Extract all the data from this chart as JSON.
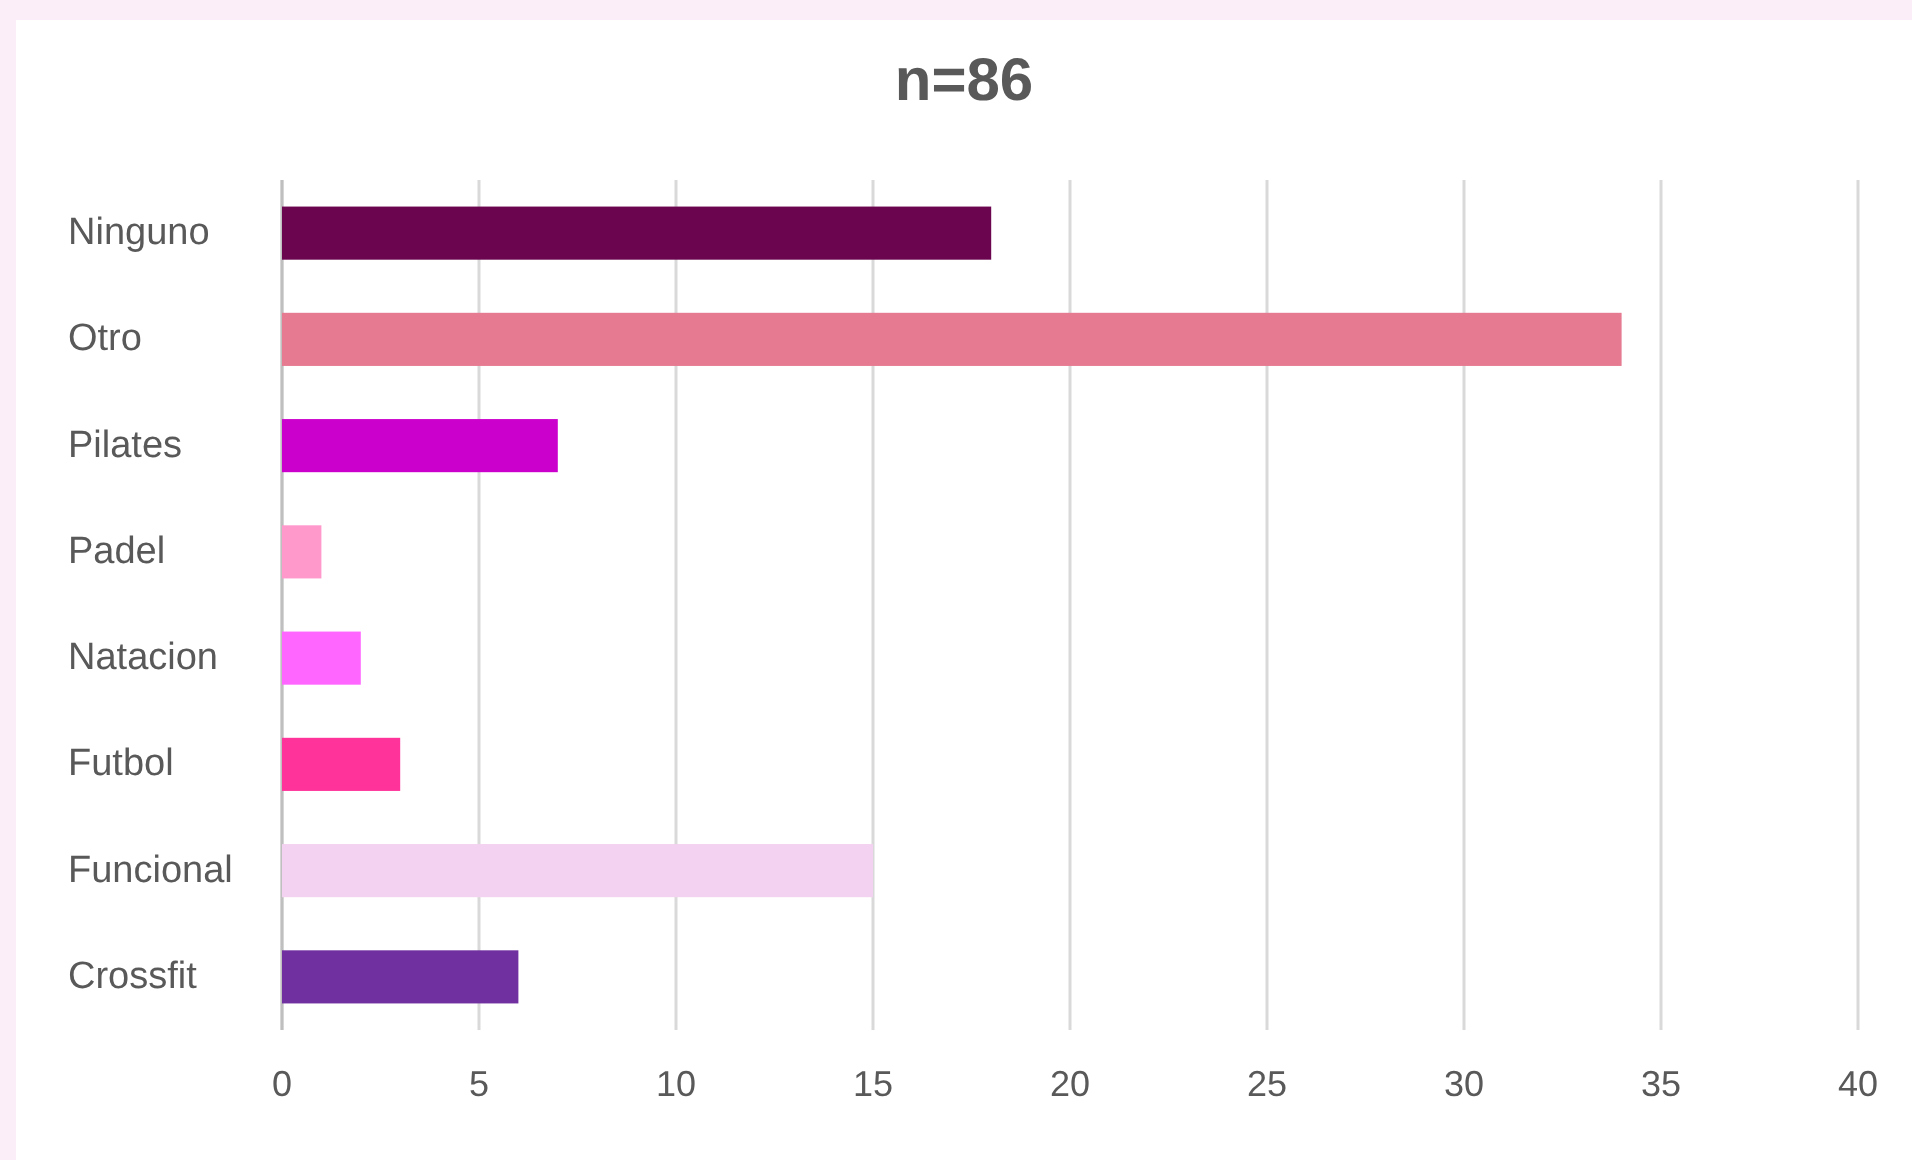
{
  "chart_data": {
    "type": "bar",
    "orientation": "horizontal",
    "title": "n=86",
    "categories": [
      "Ninguno",
      "Otro",
      "Pilates",
      "Padel",
      "Natacion",
      "Futbol",
      "Funcional",
      "Crossfit"
    ],
    "values": [
      18,
      34,
      7,
      1,
      2,
      3,
      15,
      6
    ],
    "colors": [
      "#6b0550",
      "#e57a90",
      "#cc00cc",
      "#ff99cc",
      "#ff66ff",
      "#ff3399",
      "#f3d1f0",
      "#7030a0"
    ],
    "xlim": [
      0,
      40
    ],
    "xticks": [
      0,
      5,
      10,
      15,
      20,
      25,
      30,
      35,
      40
    ],
    "grid": "x"
  }
}
